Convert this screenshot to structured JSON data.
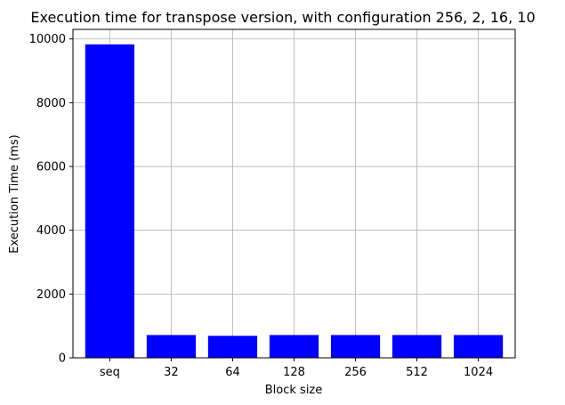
{
  "chart_data": {
    "type": "bar",
    "title": "Execution time for transpose version, with configuration 256, 2, 16, 10",
    "xlabel": "Block size",
    "ylabel": "Execution Time (ms)",
    "categories": [
      "seq",
      "32",
      "64",
      "128",
      "256",
      "512",
      "1024"
    ],
    "values": [
      9830,
      715,
      690,
      715,
      715,
      715,
      715
    ],
    "ylim": [
      0,
      10300
    ],
    "yticks": [
      0,
      2000,
      4000,
      6000,
      8000,
      10000
    ],
    "grid": true,
    "bar_color": "#0000ff"
  }
}
